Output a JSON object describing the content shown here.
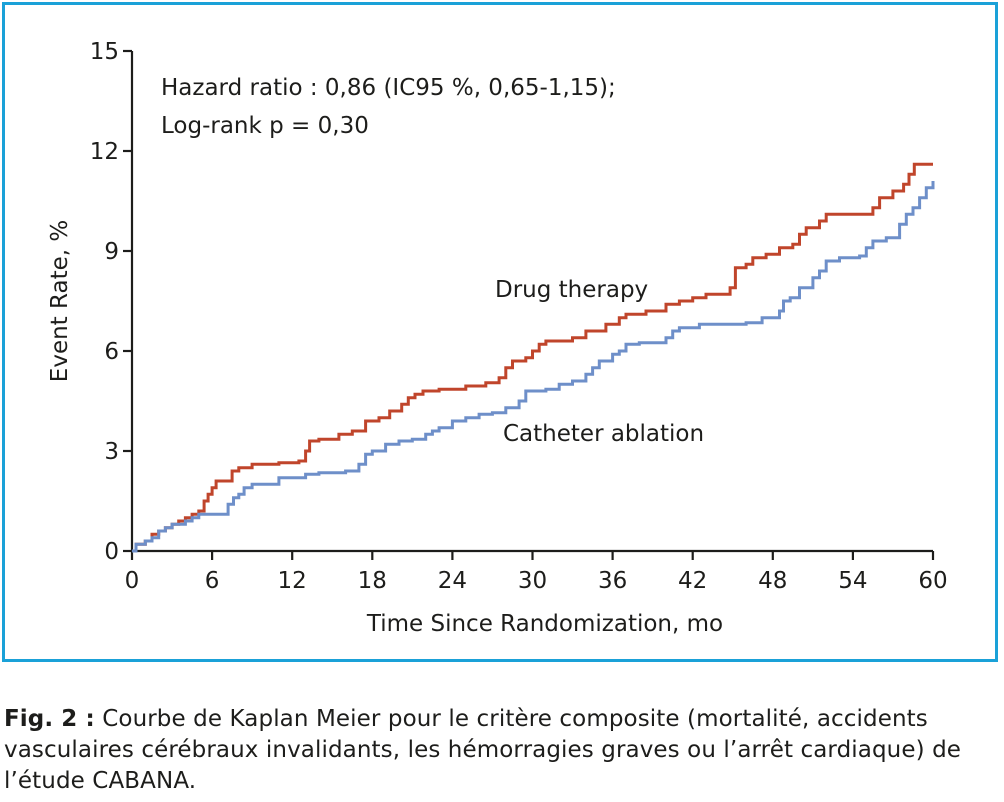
{
  "chart_data": {
    "type": "line",
    "step": true,
    "xlabel": "Time Since Randomization, mo",
    "ylabel": "Event Rate, %",
    "xlim": [
      0,
      60
    ],
    "ylim": [
      0,
      15
    ],
    "xticks": [
      0,
      6,
      12,
      18,
      24,
      30,
      36,
      42,
      48,
      54,
      60
    ],
    "yticks": [
      0,
      3,
      6,
      9,
      12,
      15
    ],
    "grid": false,
    "annotations": [
      "Hazard ratio : 0,86 (IC95 %, 0,65-1,15);",
      "Log-rank p = 0,30"
    ],
    "series": [
      {
        "name": "Drug therapy",
        "color": "#c0452b",
        "points": [
          [
            0,
            0
          ],
          [
            0.3,
            0.2
          ],
          [
            1,
            0.3
          ],
          [
            1.5,
            0.5
          ],
          [
            2,
            0.6
          ],
          [
            2.5,
            0.7
          ],
          [
            3,
            0.8
          ],
          [
            3.5,
            0.9
          ],
          [
            4,
            1.0
          ],
          [
            4.5,
            1.1
          ],
          [
            5,
            1.2
          ],
          [
            5.4,
            1.5
          ],
          [
            5.7,
            1.7
          ],
          [
            6,
            1.9
          ],
          [
            6.3,
            2.1
          ],
          [
            7,
            2.1
          ],
          [
            7.5,
            2.4
          ],
          [
            8,
            2.5
          ],
          [
            8.5,
            2.5
          ],
          [
            9,
            2.6
          ],
          [
            10,
            2.6
          ],
          [
            11,
            2.65
          ],
          [
            12.5,
            2.7
          ],
          [
            13,
            3.0
          ],
          [
            13.3,
            3.3
          ],
          [
            14,
            3.35
          ],
          [
            15.5,
            3.5
          ],
          [
            16.5,
            3.6
          ],
          [
            17.5,
            3.9
          ],
          [
            18.5,
            4.0
          ],
          [
            19.3,
            4.2
          ],
          [
            20.2,
            4.4
          ],
          [
            20.7,
            4.6
          ],
          [
            21.2,
            4.7
          ],
          [
            21.8,
            4.8
          ],
          [
            23,
            4.85
          ],
          [
            25,
            4.95
          ],
          [
            26.5,
            5.05
          ],
          [
            27.5,
            5.2
          ],
          [
            28,
            5.5
          ],
          [
            28.5,
            5.7
          ],
          [
            29.5,
            5.8
          ],
          [
            30,
            6.0
          ],
          [
            30.5,
            6.2
          ],
          [
            31,
            6.3
          ],
          [
            33,
            6.4
          ],
          [
            34,
            6.6
          ],
          [
            35.5,
            6.8
          ],
          [
            36.5,
            7.0
          ],
          [
            37,
            7.1
          ],
          [
            38.5,
            7.2
          ],
          [
            40,
            7.4
          ],
          [
            41,
            7.5
          ],
          [
            42,
            7.6
          ],
          [
            43,
            7.7
          ],
          [
            44.8,
            7.9
          ],
          [
            45.2,
            8.5
          ],
          [
            46,
            8.6
          ],
          [
            46.5,
            8.8
          ],
          [
            47.5,
            8.9
          ],
          [
            48.5,
            9.1
          ],
          [
            49.5,
            9.2
          ],
          [
            50,
            9.5
          ],
          [
            50.5,
            9.7
          ],
          [
            51.5,
            9.9
          ],
          [
            52,
            10.1
          ],
          [
            55.5,
            10.3
          ],
          [
            56,
            10.6
          ],
          [
            57,
            10.8
          ],
          [
            57.8,
            11.0
          ],
          [
            58.2,
            11.3
          ],
          [
            58.6,
            11.6
          ],
          [
            60,
            11.6
          ]
        ]
      },
      {
        "name": "Catheter ablation",
        "color": "#6e8fc9",
        "points": [
          [
            0,
            0
          ],
          [
            0.3,
            0.2
          ],
          [
            1,
            0.3
          ],
          [
            1.5,
            0.4
          ],
          [
            2,
            0.6
          ],
          [
            2.5,
            0.7
          ],
          [
            3,
            0.8
          ],
          [
            4,
            0.9
          ],
          [
            4.5,
            1.0
          ],
          [
            5,
            1.1
          ],
          [
            6,
            1.1
          ],
          [
            6.9,
            1.1
          ],
          [
            7.2,
            1.4
          ],
          [
            7.6,
            1.6
          ],
          [
            8,
            1.7
          ],
          [
            8.4,
            1.9
          ],
          [
            9,
            2.0
          ],
          [
            10,
            2.0
          ],
          [
            11,
            2.2
          ],
          [
            12,
            2.2
          ],
          [
            13,
            2.3
          ],
          [
            14,
            2.35
          ],
          [
            16,
            2.4
          ],
          [
            17,
            2.6
          ],
          [
            17.5,
            2.9
          ],
          [
            18,
            3.0
          ],
          [
            19,
            3.2
          ],
          [
            20,
            3.3
          ],
          [
            21,
            3.35
          ],
          [
            22,
            3.5
          ],
          [
            22.5,
            3.6
          ],
          [
            23,
            3.7
          ],
          [
            24,
            3.9
          ],
          [
            25,
            4.0
          ],
          [
            26,
            4.1
          ],
          [
            27,
            4.15
          ],
          [
            28,
            4.3
          ],
          [
            29,
            4.5
          ],
          [
            29.5,
            4.8
          ],
          [
            31,
            4.85
          ],
          [
            32,
            5.0
          ],
          [
            33,
            5.1
          ],
          [
            34,
            5.3
          ],
          [
            34.5,
            5.5
          ],
          [
            35,
            5.7
          ],
          [
            36,
            5.9
          ],
          [
            36.5,
            6.0
          ],
          [
            37,
            6.2
          ],
          [
            38,
            6.25
          ],
          [
            40,
            6.4
          ],
          [
            40.5,
            6.6
          ],
          [
            41,
            6.7
          ],
          [
            42.5,
            6.8
          ],
          [
            46,
            6.85
          ],
          [
            47.2,
            7.0
          ],
          [
            48.5,
            7.2
          ],
          [
            48.8,
            7.5
          ],
          [
            49.3,
            7.6
          ],
          [
            50,
            7.9
          ],
          [
            51,
            8.2
          ],
          [
            51.5,
            8.4
          ],
          [
            52,
            8.7
          ],
          [
            53,
            8.8
          ],
          [
            54.5,
            8.85
          ],
          [
            55,
            9.1
          ],
          [
            55.5,
            9.3
          ],
          [
            56.5,
            9.4
          ],
          [
            57.5,
            9.8
          ],
          [
            58,
            10.1
          ],
          [
            58.5,
            10.3
          ],
          [
            59,
            10.6
          ],
          [
            59.5,
            10.9
          ],
          [
            60,
            11.1
          ]
        ]
      }
    ]
  },
  "caption": {
    "label": "Fig. 2 :",
    "text": "Courbe de Kaplan Meier pour le critère composite (mortalité, accidents vasculaires cérébraux invalidants, les hémorragies graves ou l’arrêt cardiaque) de l’étude CABANA."
  }
}
